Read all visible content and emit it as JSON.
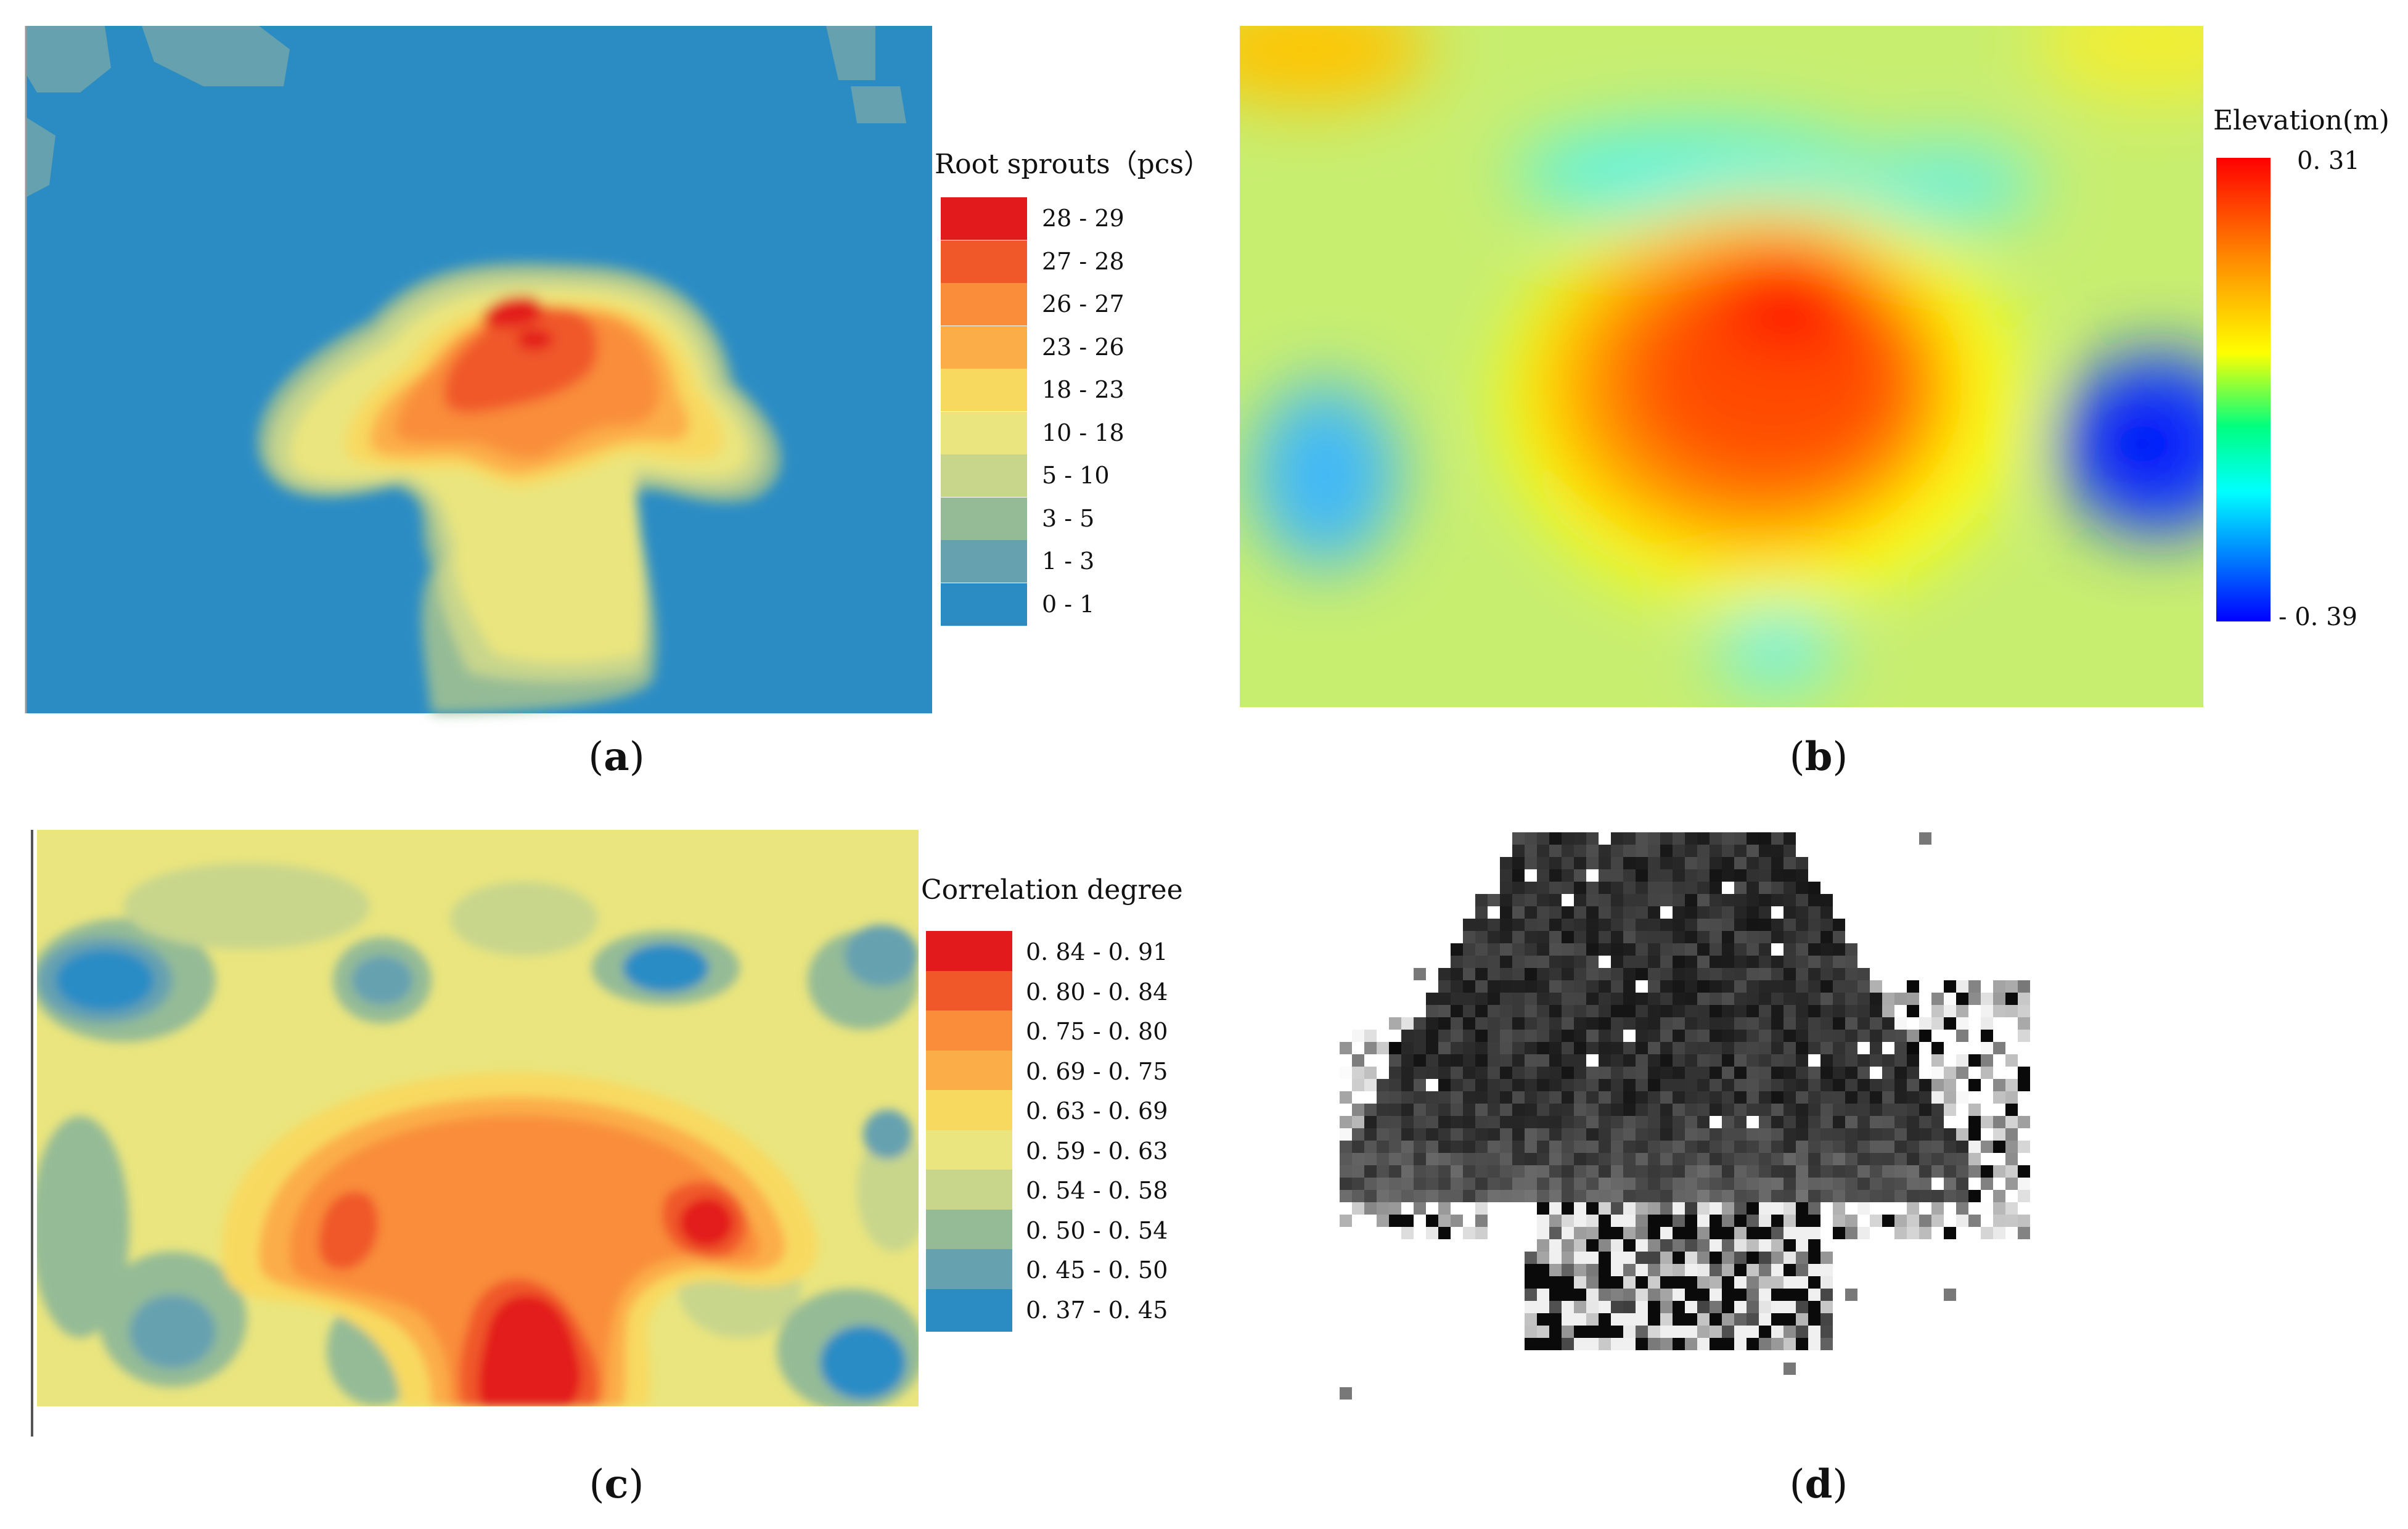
{
  "panels": {
    "a": {
      "caption_letter": "a",
      "legend_title": "Root sprouts（pcs）",
      "legend": [
        {
          "label": "28 - 29",
          "color": "#e31a1c"
        },
        {
          "label": "27 - 28",
          "color": "#f0582a"
        },
        {
          "label": "26 - 27",
          "color": "#f98d3a"
        },
        {
          "label": "23 - 26",
          "color": "#fbad48"
        },
        {
          "label": "18 - 23",
          "color": "#f8d960"
        },
        {
          "label": "10 - 18",
          "color": "#eae57e"
        },
        {
          "label": "5 - 10",
          "color": "#c8d68c"
        },
        {
          "label": "3 - 5",
          "color": "#94bb96"
        },
        {
          "label": "1 - 3",
          "color": "#66a1b0"
        },
        {
          "label": "0 - 1",
          "color": "#2b8cc4"
        }
      ]
    },
    "b": {
      "caption_letter": "b",
      "legend_title": "Elevation(m)",
      "max_label": "0. 31",
      "min_label": "- 0. 39",
      "colorscale": [
        "#ff0000",
        "#ff8c00",
        "#ffff00",
        "#00ff80",
        "#00ffff",
        "#0080ff",
        "#0000ff"
      ]
    },
    "c": {
      "caption_letter": "c",
      "legend_title": "Correlation degree",
      "legend": [
        {
          "label": "0. 84 - 0. 91",
          "color": "#e31a1c"
        },
        {
          "label": "0. 80 - 0. 84",
          "color": "#f0582a"
        },
        {
          "label": "0. 75 - 0. 80",
          "color": "#f98d3a"
        },
        {
          "label": "0. 69 - 0. 75",
          "color": "#fbad48"
        },
        {
          "label": "0. 63 - 0. 69",
          "color": "#f8d960"
        },
        {
          "label": "0. 59 - 0. 63",
          "color": "#eae57e"
        },
        {
          "label": "0. 54 - 0. 58",
          "color": "#c8d68c"
        },
        {
          "label": "0. 50 - 0. 54",
          "color": "#94bb96"
        },
        {
          "label": "0. 45 - 0. 50",
          "color": "#66a1b0"
        },
        {
          "label": "0. 37 - 0. 45",
          "color": "#2b8cc4"
        }
      ]
    },
    "d": {
      "caption_letter": "d"
    }
  },
  "chart_data": [
    {
      "type": "heatmap",
      "panel": "a",
      "title": "",
      "legend_title": "Root sprouts（pcs）",
      "classes": [
        "28 - 29",
        "27 - 28",
        "26 - 27",
        "23 - 26",
        "18 - 23",
        "10 - 18",
        "5 - 10",
        "3 - 5",
        "1 - 3",
        "0 - 1"
      ],
      "background_class": "0 - 1",
      "peak_class": "28 - 29"
    },
    {
      "type": "heatmap",
      "panel": "b",
      "title": "",
      "legend_title": "Elevation(m)",
      "value_range": [
        -0.39,
        0.31
      ],
      "scale": "continuous rainbow (blue low, red high)"
    },
    {
      "type": "heatmap",
      "panel": "c",
      "title": "",
      "legend_title": "Correlation degree",
      "classes": [
        "0. 84 - 0. 91",
        "0. 80 - 0. 84",
        "0. 75 - 0. 80",
        "0. 69 - 0. 75",
        "0. 63 - 0. 69",
        "0. 59 - 0. 63",
        "0. 54 - 0. 58",
        "0. 50 - 0. 54",
        "0. 45 - 0. 50",
        "0. 37 - 0. 45"
      ],
      "value_range": [
        0.37,
        0.91
      ]
    },
    {
      "type": "heatmap",
      "panel": "d",
      "title": "",
      "scale": "grayscale pixel grid"
    }
  ]
}
